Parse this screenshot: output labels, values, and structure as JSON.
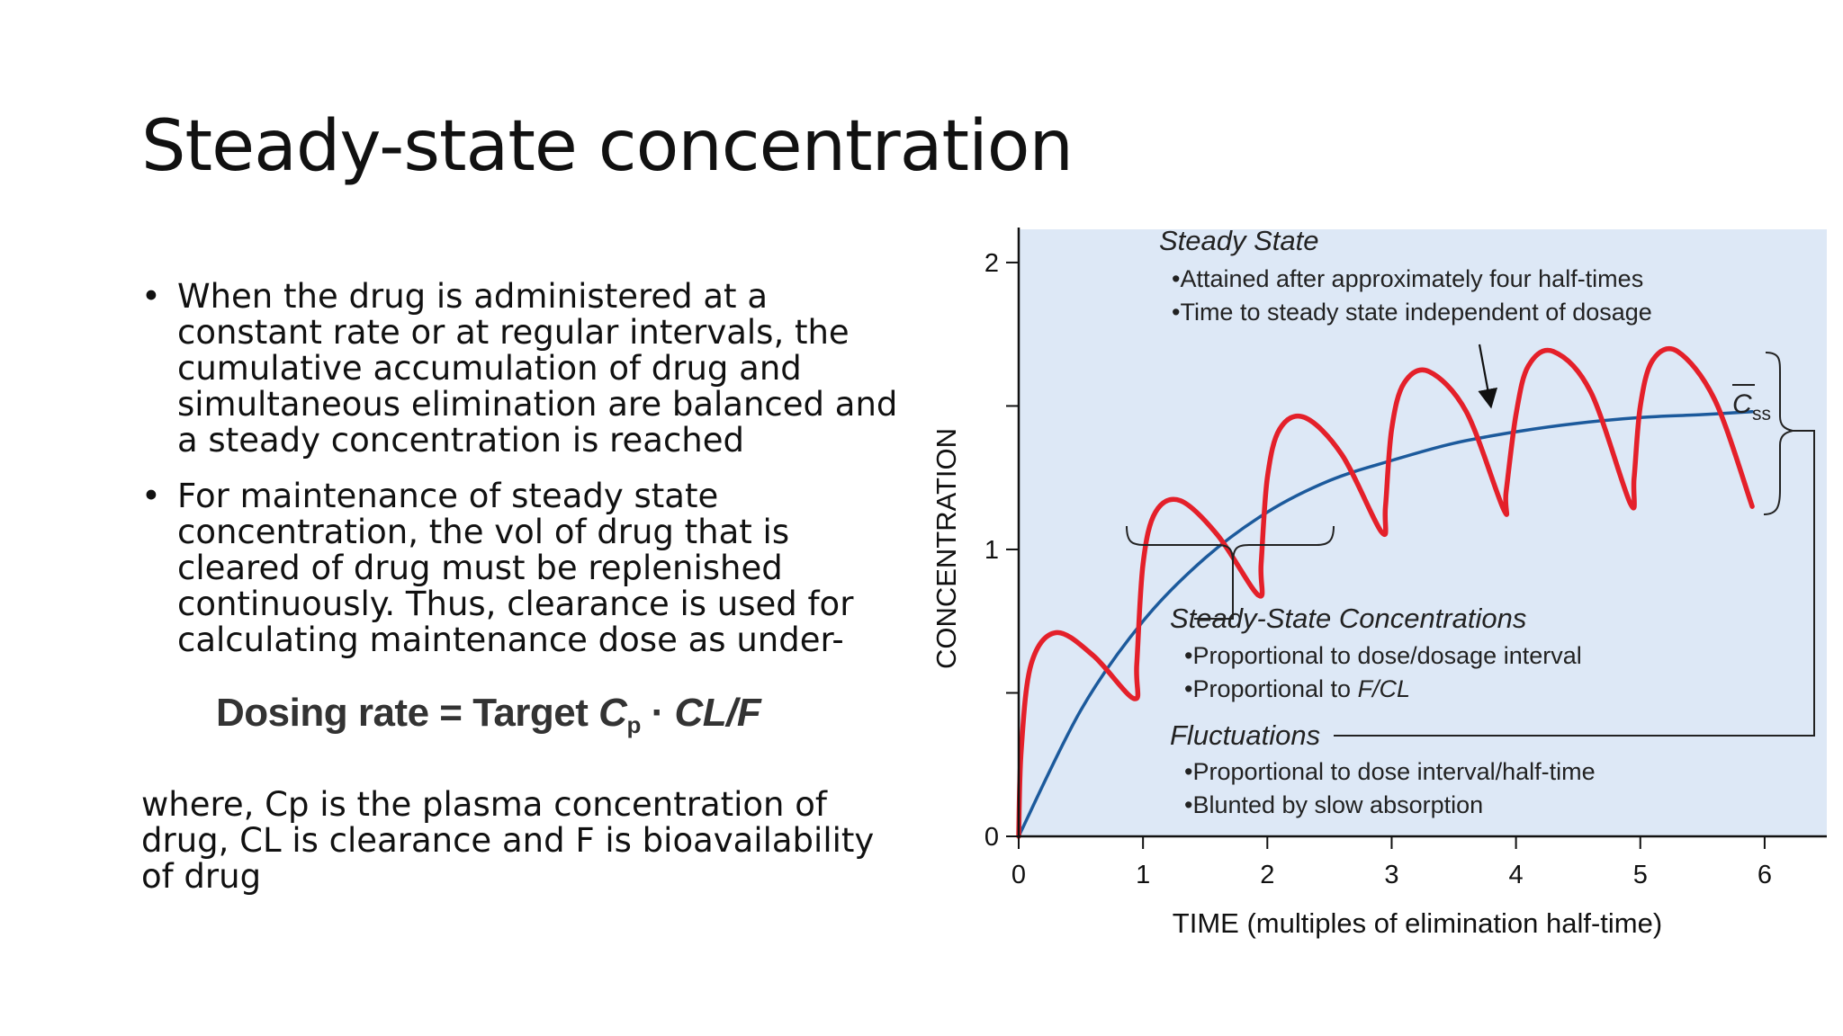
{
  "slide": {
    "title": "Steady-state concentration",
    "bullets": [
      "When the drug is administered at a constant rate or at regular intervals, the cumulative accumulation of drug and simultaneous elimination are balanced and a steady concentration is reached",
      "For maintenance of steady state concentration, the vol of drug that is cleared of drug must be replenished continuously. Thus, clearance is used for calculating maintenance dose as under-"
    ],
    "formula": {
      "lhs": "Dosing rate",
      "eq": "=",
      "target": "Target",
      "cp_symbol": "C",
      "cp_sub": "p",
      "dot": "·",
      "clf": "CL/F"
    },
    "where_text": "where, Cp is the plasma concentration of drug, CL is clearance and F is bioavailability of drug"
  },
  "chart_data": {
    "type": "line",
    "xlabel": "TIME (multiples of elimination half-time)",
    "ylabel": "CONCENTRATION",
    "xlim": [
      0,
      6.5
    ],
    "ylim": [
      0,
      2.1
    ],
    "x_ticks": [
      0,
      1,
      2,
      3,
      4,
      5,
      6
    ],
    "y_ticks": [
      0,
      0.5,
      1,
      1.5,
      2
    ],
    "y_tick_labels": [
      "0",
      "",
      "1",
      "",
      "2"
    ],
    "background": "#dde8f6",
    "series": [
      {
        "color": "#1c5a9c",
        "x": [
          0,
          0.5,
          1,
          1.5,
          2,
          2.5,
          3,
          3.5,
          4,
          4.5,
          5,
          5.5,
          5.9
        ],
        "values": [
          0,
          0.44,
          0.75,
          0.97,
          1.13,
          1.24,
          1.31,
          1.37,
          1.41,
          1.44,
          1.46,
          1.47,
          1.48
        ]
      },
      {
        "color": "#e4202a",
        "x": [
          0,
          0.02,
          0.1,
          0.3,
          0.6,
          0.93,
          0.95,
          1.0,
          1.1,
          1.3,
          1.6,
          1.93,
          1.95,
          2.0,
          2.1,
          2.3,
          2.6,
          2.92,
          2.95,
          3.0,
          3.1,
          3.3,
          3.6,
          3.9,
          3.92,
          4.0,
          4.1,
          4.3,
          4.6,
          4.92,
          4.95,
          5.0,
          5.1,
          5.3,
          5.6,
          5.9
        ],
        "values": [
          0,
          0.3,
          0.6,
          0.71,
          0.63,
          0.48,
          0.6,
          0.95,
          1.13,
          1.17,
          1.05,
          0.84,
          0.95,
          1.25,
          1.42,
          1.46,
          1.33,
          1.06,
          1.15,
          1.42,
          1.58,
          1.62,
          1.48,
          1.14,
          1.2,
          1.47,
          1.64,
          1.69,
          1.55,
          1.16,
          1.25,
          1.5,
          1.66,
          1.69,
          1.52,
          1.15
        ]
      }
    ],
    "annotations": {
      "steady_state_title": "Steady State",
      "steady_state_items": [
        "•Attained after approximately four half-times",
        "•Time to steady state independent of dosage"
      ],
      "css_symbol": "C",
      "css_sub": "ss",
      "ssc_title": "Steady-State Concentrations",
      "ssc_items": [
        "•Proportional to dose/dosage interval",
        "•Proportional to "
      ],
      "ssc_item2_italic": "F/CL",
      "fluct_title": "Fluctuations",
      "fluct_items": [
        "•Proportional to dose interval/half-time",
        "•Blunted by slow absorption"
      ]
    }
  }
}
